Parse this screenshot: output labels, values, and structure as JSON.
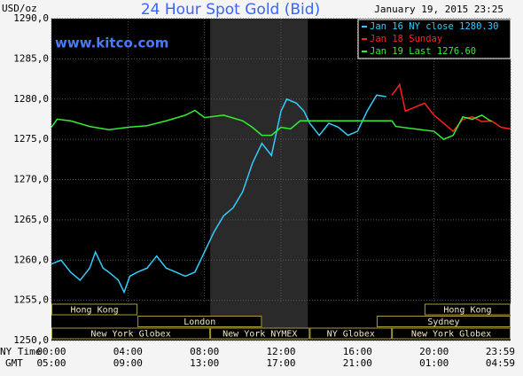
{
  "chart_data": {
    "type": "line",
    "title": "24 Hour Spot Gold (Bid)",
    "timestamp": "January 19, 2015 23:25",
    "watermark": "www.kitco.com",
    "y_label": "USD/oz",
    "x_row_labels": [
      "NY Time",
      "GMT"
    ],
    "xlim": [
      0,
      24
    ],
    "xticks": [
      {
        "value": 0,
        "label": "00:00",
        "gmt": "05:00"
      },
      {
        "value": 4,
        "label": "04:00",
        "gmt": "09:00"
      },
      {
        "value": 8,
        "label": "08:00",
        "gmt": "13:00"
      },
      {
        "value": 12,
        "label": "12:00",
        "gmt": "17:00"
      },
      {
        "value": 16,
        "label": "16:00",
        "gmt": "21:00"
      },
      {
        "value": 20,
        "label": "20:00",
        "gmt": "01:00"
      },
      {
        "value": 24,
        "label": "23:59",
        "gmt": "04:59"
      }
    ],
    "ylim": [
      1250,
      1290
    ],
    "yticks": [
      {
        "value": 1250,
        "label": "1250,0"
      },
      {
        "value": 1255,
        "label": "1255,0"
      },
      {
        "value": 1260,
        "label": "1260,0"
      },
      {
        "value": 1265,
        "label": "1265,0"
      },
      {
        "value": 1270,
        "label": "1270,0"
      },
      {
        "value": 1275,
        "label": "1275,0"
      },
      {
        "value": 1280,
        "label": "1280,0"
      },
      {
        "value": 1285,
        "label": "1285,0"
      },
      {
        "value": 1290,
        "label": "1290,0"
      }
    ],
    "grid": true,
    "highlight_hours": [
      8.3,
      13.4
    ],
    "sessions": [
      {
        "name": "Hong Kong",
        "row": 0,
        "start": 0,
        "end": 4.5
      },
      {
        "name": "Hong Kong",
        "row": 0,
        "start": 19.5,
        "end": 24
      },
      {
        "name": "London",
        "row": 1,
        "start": 4.5,
        "end": 11
      },
      {
        "name": "Sydney",
        "row": 1,
        "start": 17,
        "end": 24
      },
      {
        "name": "New York Globex",
        "row": 2,
        "start": 0,
        "end": 8.3
      },
      {
        "name": "New York NYMEX",
        "row": 2,
        "start": 8.3,
        "end": 13.5
      },
      {
        "name": "NY Globex",
        "row": 2,
        "start": 13.5,
        "end": 17.8
      },
      {
        "name": "New York Globex",
        "row": 2,
        "start": 17.8,
        "end": 24
      }
    ],
    "series": [
      {
        "name": "Jan 16 NY close 1280.30",
        "color": "#33ccff",
        "x": [
          0,
          0.5,
          1,
          1.5,
          2,
          2.3,
          2.7,
          3,
          3.5,
          3.8,
          4.1,
          4.5,
          5,
          5.5,
          6,
          6.5,
          7,
          7.5,
          8,
          8.5,
          9,
          9.5,
          10,
          10.5,
          11,
          11.5,
          12,
          12.3,
          12.8,
          13.2,
          13.5,
          14,
          14.5,
          15,
          15.5,
          16,
          16.5,
          17,
          17.5
        ],
        "values": [
          1259.5,
          1260,
          1258.5,
          1257.5,
          1259,
          1261,
          1259,
          1258.5,
          1257.5,
          1256,
          1258,
          1258.5,
          1259,
          1260.5,
          1259,
          1258.5,
          1258,
          1258.5,
          1261,
          1263.5,
          1265.5,
          1266.5,
          1268.5,
          1272,
          1274.5,
          1273,
          1278.5,
          1280,
          1279.5,
          1278.5,
          1277,
          1275.5,
          1277,
          1276.5,
          1275.5,
          1276,
          1278.5,
          1280.5,
          1280.3
        ]
      },
      {
        "name": "Jan 18 Sunday",
        "color": "#ff2020",
        "x": [
          17.8,
          18.2,
          18.5,
          19,
          19.5,
          20,
          20.5,
          21,
          21.5,
          22,
          22.5,
          23,
          23.5,
          24
        ],
        "values": [
          1280.5,
          1281.8,
          1278.5,
          1279,
          1279.5,
          1278,
          1277,
          1276,
          1277.5,
          1277.8,
          1277.2,
          1277.3,
          1276.5,
          1276.3
        ]
      },
      {
        "name": "Jan 19 Last 1276.60",
        "color": "#33ee33",
        "x": [
          0,
          0.3,
          1,
          2,
          3,
          4,
          5,
          6,
          7,
          7.5,
          8,
          9,
          10,
          10.5,
          11,
          11.5,
          12,
          12.5,
          13,
          17.8,
          18,
          19,
          20,
          20.5,
          21,
          21.5,
          22,
          22.5,
          23
        ],
        "values": [
          1276.5,
          1277.5,
          1277.3,
          1276.6,
          1276.2,
          1276.5,
          1276.7,
          1277.3,
          1278,
          1278.6,
          1277.7,
          1278,
          1277.3,
          1276.5,
          1275.5,
          1275.5,
          1276.5,
          1276.3,
          1277.3,
          1277.3,
          1276.6,
          1276.3,
          1276,
          1275,
          1275.5,
          1277.8,
          1277.5,
          1278,
          1277.2
        ]
      }
    ]
  }
}
